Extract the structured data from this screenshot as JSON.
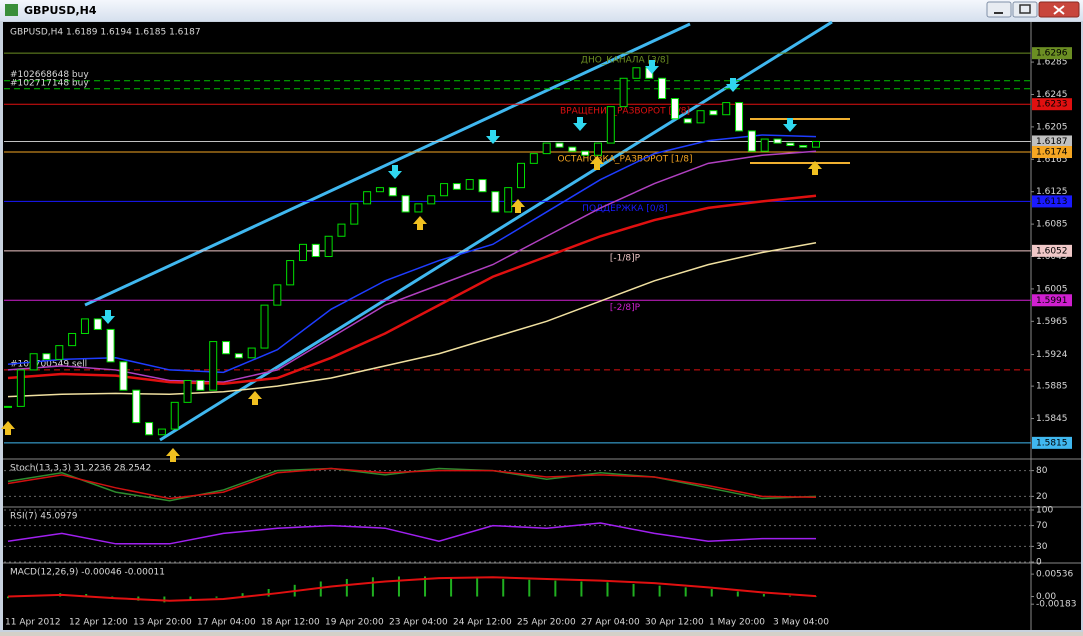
{
  "window": {
    "title": "GBPUSD,H4"
  },
  "chart_data": [
    {
      "type": "candlestick",
      "header": "GBPUSD,H4  1.6189 1.6194 1.6185 1.6187",
      "close": [
        1.586,
        1.5905,
        1.5925,
        1.5918,
        1.5935,
        1.595,
        1.5968,
        1.5955,
        1.5915,
        1.588,
        1.584,
        1.5825,
        1.5832,
        1.5865,
        1.5892,
        1.588,
        1.594,
        1.5925,
        1.592,
        1.5932,
        1.5985,
        1.601,
        1.604,
        1.606,
        1.6045,
        1.607,
        1.6085,
        1.611,
        1.6125,
        1.613,
        1.612,
        1.61,
        1.611,
        1.612,
        1.6135,
        1.6128,
        1.614,
        1.6125,
        1.61,
        1.613,
        1.616,
        1.6172,
        1.6185,
        1.618,
        1.6175,
        1.617,
        1.6185,
        1.623,
        1.6265,
        1.6278,
        1.6265,
        1.624,
        1.6215,
        1.621,
        1.6225,
        1.622,
        1.6235,
        1.62,
        1.6175,
        1.619,
        1.6185,
        1.6182,
        1.618,
        1.6187
      ],
      "ylim": [
        1.58,
        1.6332
      ],
      "yticks": [
        1.6285,
        1.6245,
        1.6205,
        1.6165,
        1.6125,
        1.6085,
        1.6045,
        1.6005,
        1.5965,
        1.5924,
        1.5885,
        1.5845
      ],
      "moving_averages": [
        {
          "color": "#1e3cff",
          "values": [
            1.5912,
            1.5918,
            1.592,
            1.5905,
            1.5902,
            1.593,
            1.598,
            1.6015,
            1.604,
            1.606,
            1.61,
            1.614,
            1.6172,
            1.6188,
            1.6195,
            1.6193
          ]
        },
        {
          "color": "#b040c0",
          "values": [
            1.5905,
            1.591,
            1.5905,
            1.5892,
            1.589,
            1.5905,
            1.5945,
            1.5985,
            1.601,
            1.6035,
            1.607,
            1.6105,
            1.6135,
            1.616,
            1.617,
            1.6175
          ]
        },
        {
          "color": "#e01010",
          "values": [
            1.5895,
            1.59,
            1.5898,
            1.589,
            1.5888,
            1.5895,
            1.592,
            1.595,
            1.5985,
            1.602,
            1.6045,
            1.607,
            1.609,
            1.6105,
            1.6113,
            1.612
          ]
        },
        {
          "color": "#f0e0a0",
          "values": [
            1.5872,
            1.5875,
            1.5876,
            1.5875,
            1.5878,
            1.5885,
            1.5895,
            1.591,
            1.5925,
            1.5945,
            1.5965,
            1.599,
            1.6015,
            1.6035,
            1.605,
            1.6062
          ]
        }
      ],
      "levels": [
        {
          "value": 1.6296,
          "color": "#6b8e23",
          "label": "ДНО_КАНАЛА [3/8]"
        },
        {
          "value": 1.6233,
          "color": "#e01010",
          "label": "ВРАЩЕНИЕ_РАЗВОРОТ [2/8]"
        },
        {
          "value": 1.6187,
          "color": "#c0c0c0"
        },
        {
          "value": 1.6174,
          "color": "#f5a623",
          "label": "ОСТАНОВКА_РАЗВОРОТ [1/8]"
        },
        {
          "value": 1.6113,
          "color": "#1a1aff",
          "label": "ПОДДЕРЖКА [0/8]"
        },
        {
          "value": 1.6052,
          "color": "#f0c8c8",
          "label": "[-1/8]P"
        },
        {
          "value": 1.5991,
          "color": "#d020d0",
          "label": "[-2/8]P"
        },
        {
          "value": 1.5815,
          "color": "#40b8f0"
        }
      ],
      "orders": [
        {
          "label": "#102668648 buy",
          "value": 1.6262,
          "color": "#00c000"
        },
        {
          "label": "#102717148 buy",
          "value": 1.6252,
          "color": "#00c000"
        },
        {
          "label": "#102700549 sell",
          "value": 1.5905,
          "color": "#e01010"
        }
      ],
      "x_labels": [
        "11 Apr 2012",
        "12 Apr 12:00",
        "13 Apr 20:00",
        "17 Apr 04:00",
        "18 Apr 12:00",
        "19 Apr 20:00",
        "23 Apr 04:00",
        "24 Apr 12:00",
        "25 Apr 20:00",
        "27 Apr 04:00",
        "30 Apr 12:00",
        "1 May 20:00",
        "3 May 04:00"
      ]
    },
    {
      "type": "line",
      "title": "Stoch(13,3,3) 31.2236 28.2542",
      "ylim": [
        0,
        100
      ],
      "yticks": [
        80,
        20
      ],
      "series": [
        {
          "color": "#2e8b2e",
          "values": [
            55,
            75,
            30,
            10,
            35,
            80,
            85,
            70,
            85,
            80,
            60,
            75,
            65,
            40,
            15,
            20
          ]
        },
        {
          "color": "#d01010",
          "values": [
            50,
            70,
            40,
            15,
            30,
            75,
            85,
            75,
            80,
            80,
            65,
            70,
            65,
            45,
            20,
            18
          ]
        }
      ]
    },
    {
      "type": "line",
      "title": "RSI(7) 45.0979",
      "ylim": [
        0,
        100
      ],
      "yticks": [
        100,
        70,
        30,
        0
      ],
      "series": [
        {
          "color": "#a020f0",
          "values": [
            40,
            55,
            35,
            35,
            55,
            65,
            70,
            65,
            40,
            70,
            65,
            75,
            55,
            40,
            45,
            45
          ]
        }
      ]
    },
    {
      "type": "histogram",
      "title": "MACD(12,26,9) -0.00046 -0.00011",
      "ylim": [
        -0.0037,
        0.0073
      ],
      "yticks": [
        0.00536,
        {
          "value": 0,
          "label": "0.00"
        },
        -0.00183
      ],
      "color": "#20b020",
      "values": [
        -0.0004,
        0.0002,
        0.0008,
        0.0006,
        -0.0002,
        -0.001,
        -0.0014,
        -0.001,
        -0.0003,
        0.0008,
        0.0018,
        0.0028,
        0.0036,
        0.0042,
        0.0046,
        0.0048,
        0.0048,
        0.0046,
        0.0044,
        0.0042,
        0.004,
        0.0038,
        0.0036,
        0.0034,
        0.003,
        0.0026,
        0.0022,
        0.0018,
        0.0012,
        0.0006,
        0.0002,
        -0.0001
      ],
      "series": [
        {
          "color": "#e01010",
          "values": [
            0.0,
            0.0004,
            -0.0004,
            -0.001,
            -0.0006,
            0.0008,
            0.0024,
            0.0036,
            0.0044,
            0.0046,
            0.0042,
            0.0038,
            0.0032,
            0.0022,
            0.001,
            0.0001
          ]
        }
      ]
    }
  ]
}
